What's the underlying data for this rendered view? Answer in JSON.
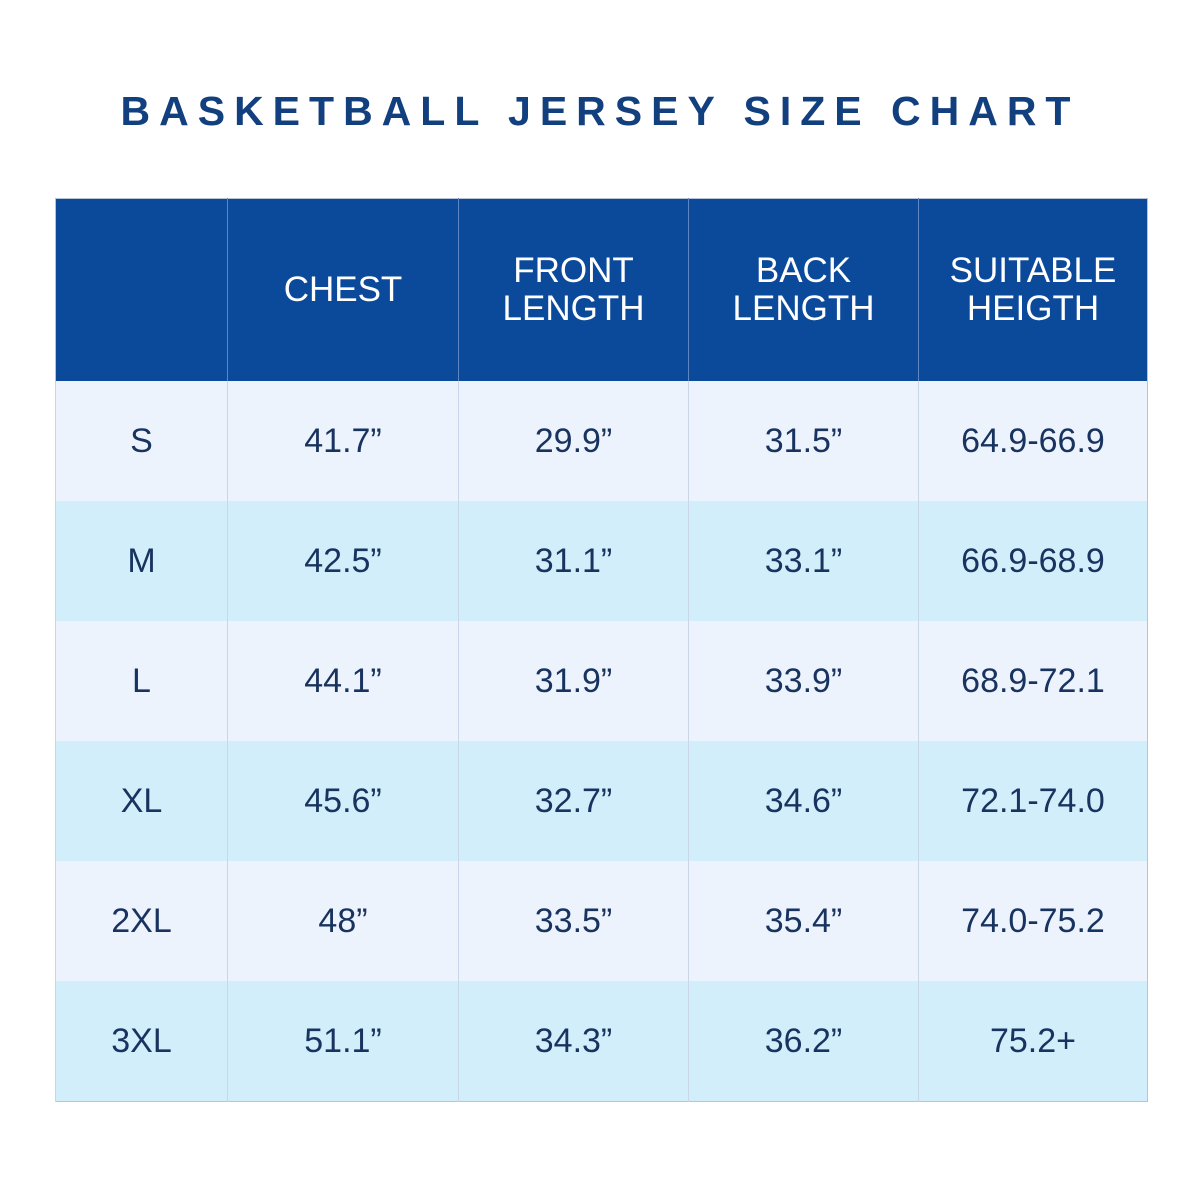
{
  "title": "BASKETBALL JERSEY SIZE CHART",
  "table": {
    "headers": [
      "",
      "CHEST",
      "FRONT LENGTH",
      "BACK LENGTH",
      "SUITABLE HEIGTH"
    ],
    "rows": [
      [
        "S",
        "41.7”",
        "29.9”",
        "31.5”",
        "64.9-66.9"
      ],
      [
        "M",
        "42.5”",
        "31.1”",
        "33.1”",
        "66.9-68.9"
      ],
      [
        "L",
        "44.1”",
        "31.9”",
        "33.9”",
        "68.9-72.1"
      ],
      [
        "XL",
        "45.6”",
        "32.7”",
        "34.6”",
        "72.1-74.0"
      ],
      [
        "2XL",
        "48”",
        "33.5”",
        "35.4”",
        "74.0-75.2"
      ],
      [
        "3XL",
        "51.1”",
        "34.3”",
        "36.2”",
        "75.2+"
      ]
    ]
  }
}
